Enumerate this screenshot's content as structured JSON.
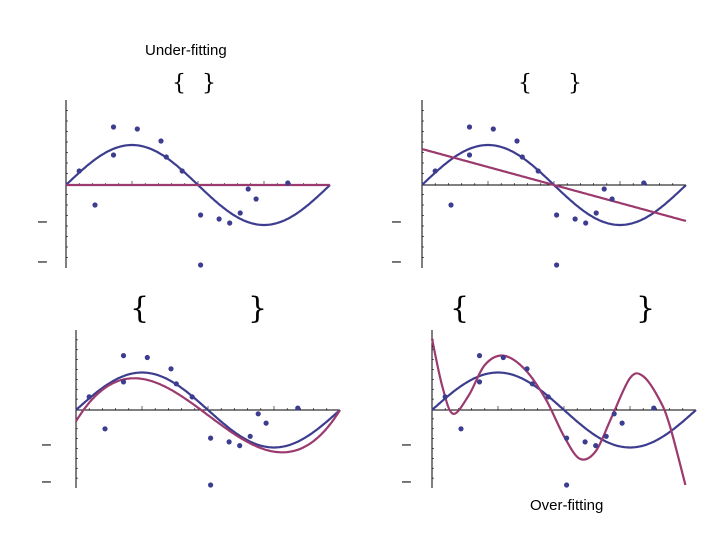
{
  "captions": {
    "under_fitting": "Under-fitting",
    "over_fitting": "Over-fitting"
  },
  "colors": {
    "true_curve": "#3d3d8f",
    "fit_curve": "#9b3a6e",
    "points": "#3d3d8f",
    "axis": "#000000"
  },
  "chart_data": [
    {
      "type": "line",
      "xlim": [
        0,
        1
      ],
      "ylim": [
        -2,
        2
      ],
      "grid": false,
      "brace_text": "{ }",
      "ytick_labels": [
        "–",
        "–"
      ],
      "points": [
        [
          0.05,
          0.35
        ],
        [
          0.11,
          -0.5
        ],
        [
          0.18,
          1.45
        ],
        [
          0.18,
          0.75
        ],
        [
          0.27,
          1.4
        ],
        [
          0.36,
          1.1
        ],
        [
          0.38,
          0.7
        ],
        [
          0.44,
          0.35
        ],
        [
          0.51,
          -0.75
        ],
        [
          0.51,
          -2.0
        ],
        [
          0.58,
          -0.85
        ],
        [
          0.62,
          -0.95
        ],
        [
          0.66,
          -0.7
        ],
        [
          0.69,
          -0.1
        ],
        [
          0.72,
          -0.35
        ],
        [
          0.84,
          0.05
        ]
      ],
      "true_curve": "sin",
      "fit_coeffs": [
        0.0
      ]
    },
    {
      "type": "line",
      "xlim": [
        0,
        1
      ],
      "ylim": [
        -2,
        2
      ],
      "grid": false,
      "brace_text": "{ }",
      "ytick_labels": [
        "–",
        "–"
      ],
      "points": [
        [
          0.05,
          0.35
        ],
        [
          0.11,
          -0.5
        ],
        [
          0.18,
          1.45
        ],
        [
          0.18,
          0.75
        ],
        [
          0.27,
          1.4
        ],
        [
          0.36,
          1.1
        ],
        [
          0.38,
          0.7
        ],
        [
          0.44,
          0.35
        ],
        [
          0.51,
          -0.75
        ],
        [
          0.51,
          -2.0
        ],
        [
          0.58,
          -0.85
        ],
        [
          0.62,
          -0.95
        ],
        [
          0.66,
          -0.7
        ],
        [
          0.69,
          -0.1
        ],
        [
          0.72,
          -0.35
        ],
        [
          0.84,
          0.05
        ]
      ],
      "true_curve": "sin",
      "fit_coeffs": [
        0.9,
        -1.8
      ]
    },
    {
      "type": "line",
      "xlim": [
        0,
        1
      ],
      "ylim": [
        -2,
        2
      ],
      "grid": false,
      "brace_text": "{ }",
      "ytick_labels": [
        "–",
        "–"
      ],
      "points": [
        [
          0.05,
          0.35
        ],
        [
          0.11,
          -0.5
        ],
        [
          0.18,
          1.45
        ],
        [
          0.18,
          0.75
        ],
        [
          0.27,
          1.4
        ],
        [
          0.36,
          1.1
        ],
        [
          0.38,
          0.7
        ],
        [
          0.44,
          0.35
        ],
        [
          0.51,
          -0.75
        ],
        [
          0.51,
          -2.0
        ],
        [
          0.58,
          -0.85
        ],
        [
          0.62,
          -0.95
        ],
        [
          0.66,
          -0.7
        ],
        [
          0.69,
          -0.1
        ],
        [
          0.72,
          -0.35
        ],
        [
          0.84,
          0.05
        ]
      ],
      "true_curve": "sin",
      "fit_coeffs": [
        -0.3,
        11.5,
        -33.5,
        22.3
      ]
    },
    {
      "type": "line",
      "xlim": [
        0,
        1
      ],
      "ylim": [
        -2,
        2
      ],
      "grid": false,
      "brace_text": "{ }",
      "ytick_labels": [
        "–",
        "–"
      ],
      "points": [
        [
          0.05,
          0.35
        ],
        [
          0.11,
          -0.5
        ],
        [
          0.18,
          1.45
        ],
        [
          0.18,
          0.75
        ],
        [
          0.27,
          1.4
        ],
        [
          0.36,
          1.1
        ],
        [
          0.38,
          0.7
        ],
        [
          0.44,
          0.35
        ],
        [
          0.51,
          -0.75
        ],
        [
          0.51,
          -2.0
        ],
        [
          0.58,
          -0.85
        ],
        [
          0.62,
          -0.95
        ],
        [
          0.66,
          -0.7
        ],
        [
          0.69,
          -0.1
        ],
        [
          0.72,
          -0.35
        ],
        [
          0.84,
          0.05
        ]
      ],
      "true_curve": "sin",
      "fit_knots": [
        [
          0.0,
          1.9
        ],
        [
          0.04,
          0.6
        ],
        [
          0.08,
          -0.1
        ],
        [
          0.14,
          0.4
        ],
        [
          0.2,
          1.2
        ],
        [
          0.27,
          1.45
        ],
        [
          0.35,
          1.1
        ],
        [
          0.43,
          0.3
        ],
        [
          0.5,
          -0.7
        ],
        [
          0.56,
          -1.3
        ],
        [
          0.62,
          -1.1
        ],
        [
          0.68,
          -0.2
        ],
        [
          0.75,
          0.85
        ],
        [
          0.8,
          0.9
        ],
        [
          0.86,
          0.3
        ],
        [
          0.9,
          -0.4
        ],
        [
          0.96,
          -2.0
        ]
      ]
    }
  ]
}
